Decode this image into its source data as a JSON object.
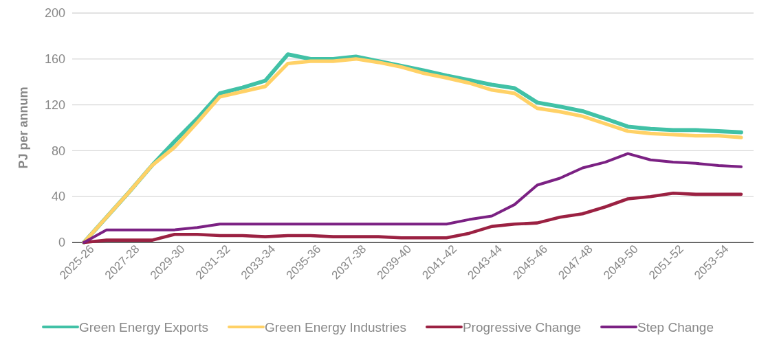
{
  "chart_data": {
    "type": "line",
    "ylabel": "PJ per annum",
    "categories": [
      "2025-26",
      null,
      "2027-28",
      null,
      "2029-30",
      null,
      "2031-32",
      null,
      "2033-34",
      null,
      "2035-36",
      null,
      "2037-38",
      null,
      "2039-40",
      null,
      "2041-42",
      null,
      "2043-44",
      null,
      "2045-46",
      null,
      "2047-48",
      null,
      "2049-50",
      null,
      "2051-52",
      null,
      "2053-54",
      null
    ],
    "series": [
      {
        "name": "Green Energy Exports",
        "color": "#41c1a6",
        "values": [
          0,
          22,
          44,
          67,
          88,
          108,
          130,
          135,
          141,
          164,
          160,
          160,
          162,
          158,
          154,
          150,
          145.5,
          141.5,
          137.5,
          134.5,
          122,
          118.5,
          114.5,
          108,
          101,
          99,
          98,
          98,
          97,
          96
        ]
      },
      {
        "name": "Green Energy Industries",
        "color": "#ffd166",
        "values": [
          0,
          22,
          44,
          67,
          83,
          104.5,
          127,
          131.5,
          136,
          156,
          158,
          158,
          160,
          157,
          153,
          147.5,
          143.5,
          139,
          133,
          130,
          117,
          114,
          110,
          103.5,
          97,
          95,
          94,
          93,
          93,
          91.5
        ]
      },
      {
        "name": "Progressive Change",
        "color": "#9b2142",
        "values": [
          0,
          2,
          2,
          2,
          7,
          7,
          6,
          6,
          5,
          6,
          6,
          5,
          5,
          5,
          4,
          4,
          4,
          8,
          14,
          16,
          17,
          22,
          25,
          31,
          38,
          40,
          43,
          42,
          42,
          42
        ]
      },
      {
        "name": "Step Change",
        "color": "#7b2183",
        "values": [
          0,
          11,
          11,
          11,
          11,
          13,
          16,
          16,
          16,
          16,
          16,
          16,
          16,
          16,
          16,
          16,
          16,
          20,
          23,
          33,
          50,
          56,
          65,
          70,
          77.5,
          72,
          70,
          69,
          67,
          66
        ]
      }
    ],
    "ylim": [
      0,
      200
    ],
    "yticks": [
      0,
      40,
      80,
      120,
      160,
      200
    ],
    "grid": "y",
    "legend": "bottom",
    "marker": "none",
    "line_style": "solid"
  }
}
